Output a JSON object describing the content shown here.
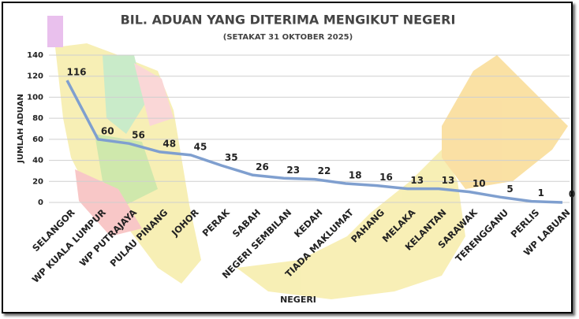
{
  "chart_data": {
    "type": "line",
    "title": "BIL. ADUAN YANG DITERIMA MENGIKUT NEGERI",
    "subtitle": "(SETAKAT 31 OKTOBER 2025)",
    "x_label": "NEGERI",
    "y_label": "JUMLAH ADUAN",
    "categories": [
      "SELANGOR",
      "WP KUALA LUMPUR",
      "WP PUTRAJAYA",
      "PULAU PINANG",
      "JOHOR",
      "PERAK",
      "SABAH",
      "NEGERI SEMBILAN",
      "KEDAH",
      "TIADA MAKLUMAT",
      "PAHANG",
      "MELAKA",
      "KELANTAN",
      "SARAWAK",
      "TERENGGANU",
      "PERLIS",
      "WP LABUAN"
    ],
    "values": [
      116,
      60,
      56,
      48,
      45,
      35,
      26,
      23,
      22,
      18,
      16,
      13,
      13,
      10,
      5,
      1,
      0
    ],
    "color": "#7f9fcf",
    "ylim": [
      0,
      140
    ],
    "yticks": [
      0,
      20,
      40,
      60,
      80,
      100,
      120,
      140
    ],
    "grid": true
  }
}
